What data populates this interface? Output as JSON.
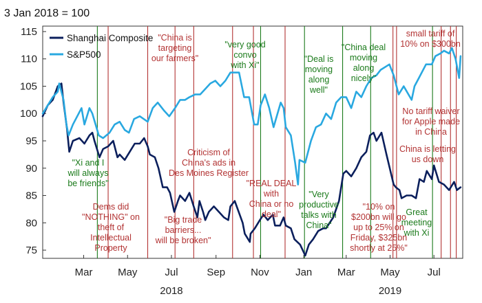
{
  "chart_data": {
    "type": "line",
    "title": "3 Jan 2018 = 100",
    "xlabel": "",
    "ylabel": "",
    "ylim": [
      73.5,
      116
    ],
    "yticks": [
      75,
      80,
      85,
      90,
      95,
      100,
      105,
      110,
      115
    ],
    "x_range": [
      "2018-01-03",
      "2019-08-10"
    ],
    "x_month_ticks": [
      {
        "date": "2018-03-01",
        "label": "Mar"
      },
      {
        "date": "2018-05-01",
        "label": "May"
      },
      {
        "date": "2018-07-01",
        "label": "Jul"
      },
      {
        "date": "2018-09-01",
        "label": "Sep"
      },
      {
        "date": "2018-11-01",
        "label": "Nov"
      },
      {
        "date": "2019-01-01",
        "label": "Jan"
      },
      {
        "date": "2019-03-01",
        "label": "Mar"
      },
      {
        "date": "2019-05-01",
        "label": "May"
      },
      {
        "date": "2019-07-01",
        "label": "Jul"
      }
    ],
    "x_year_labels": [
      {
        "date": "2018-07-01",
        "label": "2018"
      },
      {
        "date": "2019-05-01",
        "label": "2019"
      }
    ],
    "grid": false,
    "legend": "top-left",
    "series": [
      {
        "name": "Shanghai Composite",
        "color": "#0b1f5c",
        "points": [
          [
            "2018-01-03",
            99.5
          ],
          [
            "2018-01-10",
            101.5
          ],
          [
            "2018-01-17",
            102.5
          ],
          [
            "2018-01-24",
            105
          ],
          [
            "2018-01-29",
            105.5
          ],
          [
            "2018-02-01",
            102
          ],
          [
            "2018-02-06",
            97
          ],
          [
            "2018-02-09",
            93
          ],
          [
            "2018-02-14",
            95
          ],
          [
            "2018-02-23",
            95.5
          ],
          [
            "2018-03-02",
            94.5
          ],
          [
            "2018-03-09",
            96
          ],
          [
            "2018-03-13",
            96.5
          ],
          [
            "2018-03-16",
            95
          ],
          [
            "2018-03-23",
            92
          ],
          [
            "2018-03-28",
            93.5
          ],
          [
            "2018-04-04",
            94
          ],
          [
            "2018-04-11",
            95
          ],
          [
            "2018-04-17",
            92
          ],
          [
            "2018-04-20",
            92.5
          ],
          [
            "2018-04-27",
            91.5
          ],
          [
            "2018-05-04",
            93
          ],
          [
            "2018-05-11",
            94.5
          ],
          [
            "2018-05-18",
            94.5
          ],
          [
            "2018-05-24",
            95.5
          ],
          [
            "2018-05-29",
            94
          ],
          [
            "2018-06-01",
            92.5
          ],
          [
            "2018-06-08",
            92
          ],
          [
            "2018-06-13",
            90
          ],
          [
            "2018-06-19",
            86.5
          ],
          [
            "2018-06-25",
            86.5
          ],
          [
            "2018-06-29",
            85.5
          ],
          [
            "2018-07-05",
            82
          ],
          [
            "2018-07-10",
            84
          ],
          [
            "2018-07-13",
            85
          ],
          [
            "2018-07-20",
            84
          ],
          [
            "2018-07-26",
            85.5
          ],
          [
            "2018-08-01",
            83
          ],
          [
            "2018-08-06",
            81
          ],
          [
            "2018-08-09",
            84
          ],
          [
            "2018-08-14",
            82
          ],
          [
            "2018-08-17",
            80.5
          ],
          [
            "2018-08-22",
            82
          ],
          [
            "2018-08-29",
            83
          ],
          [
            "2018-09-05",
            82
          ],
          [
            "2018-09-12",
            81
          ],
          [
            "2018-09-18",
            80.5
          ],
          [
            "2018-09-21",
            83
          ],
          [
            "2018-09-27",
            84
          ],
          [
            "2018-10-08",
            80
          ],
          [
            "2018-10-11",
            78
          ],
          [
            "2018-10-18",
            76.5
          ],
          [
            "2018-10-19",
            78
          ],
          [
            "2018-10-25",
            79
          ],
          [
            "2018-11-01",
            80.5
          ],
          [
            "2018-11-06",
            81.5
          ],
          [
            "2018-11-12",
            80.5
          ],
          [
            "2018-11-19",
            81.5
          ],
          [
            "2018-11-22",
            79.5
          ],
          [
            "2018-11-29",
            79.5
          ],
          [
            "2018-12-04",
            81
          ],
          [
            "2018-12-07",
            79.5
          ],
          [
            "2018-12-14",
            79
          ],
          [
            "2018-12-19",
            77
          ],
          [
            "2018-12-27",
            76
          ],
          [
            "2019-01-03",
            74
          ],
          [
            "2019-01-08",
            76
          ],
          [
            "2019-01-14",
            77
          ],
          [
            "2019-01-21",
            78.5
          ],
          [
            "2019-01-28",
            79
          ],
          [
            "2019-02-01",
            79
          ],
          [
            "2019-02-11",
            81
          ],
          [
            "2019-02-19",
            84
          ],
          [
            "2019-02-25",
            89
          ],
          [
            "2019-03-01",
            89.5
          ],
          [
            "2019-03-08",
            88.5
          ],
          [
            "2019-03-15",
            90
          ],
          [
            "2019-03-22",
            92
          ],
          [
            "2019-03-29",
            93
          ],
          [
            "2019-04-03",
            96
          ],
          [
            "2019-04-08",
            96.5
          ],
          [
            "2019-04-12",
            95
          ],
          [
            "2019-04-19",
            96.5
          ],
          [
            "2019-04-26",
            92.5
          ],
          [
            "2019-05-06",
            87
          ],
          [
            "2019-05-09",
            86.5
          ],
          [
            "2019-05-14",
            86
          ],
          [
            "2019-05-17",
            84.5
          ],
          [
            "2019-05-24",
            85
          ],
          [
            "2019-05-31",
            85
          ],
          [
            "2019-06-06",
            84.5
          ],
          [
            "2019-06-11",
            88
          ],
          [
            "2019-06-17",
            87.5
          ],
          [
            "2019-06-21",
            89.5
          ],
          [
            "2019-06-28",
            88
          ],
          [
            "2019-07-01",
            90.5
          ],
          [
            "2019-07-08",
            87.5
          ],
          [
            "2019-07-15",
            87
          ],
          [
            "2019-07-22",
            86
          ],
          [
            "2019-07-29",
            87.5
          ],
          [
            "2019-08-02",
            86
          ],
          [
            "2019-08-07",
            86.5
          ]
        ]
      },
      {
        "name": "S&P500",
        "color": "#29a8e0",
        "points": [
          [
            "2018-01-03",
            100
          ],
          [
            "2018-01-10",
            101.5
          ],
          [
            "2018-01-17",
            103
          ],
          [
            "2018-01-24",
            104
          ],
          [
            "2018-01-26",
            105.5
          ],
          [
            "2018-02-01",
            102.5
          ],
          [
            "2018-02-05",
            98
          ],
          [
            "2018-02-08",
            96
          ],
          [
            "2018-02-14",
            98
          ],
          [
            "2018-02-26",
            101
          ],
          [
            "2018-03-02",
            98
          ],
          [
            "2018-03-09",
            101
          ],
          [
            "2018-03-13",
            100
          ],
          [
            "2018-03-22",
            96
          ],
          [
            "2018-03-28",
            95.5
          ],
          [
            "2018-04-06",
            96.5
          ],
          [
            "2018-04-13",
            98
          ],
          [
            "2018-04-20",
            98.5
          ],
          [
            "2018-04-27",
            97
          ],
          [
            "2018-05-03",
            96.5
          ],
          [
            "2018-05-10",
            99
          ],
          [
            "2018-05-18",
            99.5
          ],
          [
            "2018-05-29",
            98.5
          ],
          [
            "2018-06-05",
            101
          ],
          [
            "2018-06-12",
            102
          ],
          [
            "2018-06-21",
            100.5
          ],
          [
            "2018-06-28",
            99.5
          ],
          [
            "2018-07-06",
            101
          ],
          [
            "2018-07-13",
            102.5
          ],
          [
            "2018-07-20",
            102.5
          ],
          [
            "2018-07-26",
            103
          ],
          [
            "2018-08-03",
            103.5
          ],
          [
            "2018-08-10",
            103.5
          ],
          [
            "2018-08-17",
            104.5
          ],
          [
            "2018-08-24",
            105.5
          ],
          [
            "2018-08-31",
            106
          ],
          [
            "2018-09-07",
            105
          ],
          [
            "2018-09-14",
            106
          ],
          [
            "2018-09-21",
            107.5
          ],
          [
            "2018-10-03",
            107.5
          ],
          [
            "2018-10-10",
            103
          ],
          [
            "2018-10-17",
            103
          ],
          [
            "2018-10-24",
            98
          ],
          [
            "2018-10-29",
            98
          ],
          [
            "2018-11-02",
            101.5
          ],
          [
            "2018-11-08",
            103.5
          ],
          [
            "2018-11-14",
            101
          ],
          [
            "2018-11-20",
            97.5
          ],
          [
            "2018-11-30",
            102
          ],
          [
            "2018-12-04",
            101
          ],
          [
            "2018-12-07",
            97.5
          ],
          [
            "2018-12-14",
            96
          ],
          [
            "2018-12-20",
            91
          ],
          [
            "2018-12-24",
            87
          ],
          [
            "2018-12-26",
            91.5
          ],
          [
            "2019-01-03",
            91
          ],
          [
            "2019-01-11",
            95
          ],
          [
            "2019-01-18",
            97.5
          ],
          [
            "2019-01-25",
            98
          ],
          [
            "2019-02-01",
            100
          ],
          [
            "2019-02-08",
            99
          ],
          [
            "2019-02-15",
            102
          ],
          [
            "2019-02-22",
            103
          ],
          [
            "2019-03-01",
            103
          ],
          [
            "2019-03-08",
            101
          ],
          [
            "2019-03-15",
            104
          ],
          [
            "2019-03-22",
            103
          ],
          [
            "2019-03-29",
            105
          ],
          [
            "2019-04-05",
            106.5
          ],
          [
            "2019-04-12",
            107
          ],
          [
            "2019-04-18",
            108
          ],
          [
            "2019-04-30",
            109
          ],
          [
            "2019-05-06",
            107
          ],
          [
            "2019-05-13",
            103.5
          ],
          [
            "2019-05-20",
            105
          ],
          [
            "2019-05-31",
            102.5
          ],
          [
            "2019-06-04",
            105
          ],
          [
            "2019-06-10",
            106.5
          ],
          [
            "2019-06-20",
            109
          ],
          [
            "2019-06-28",
            109
          ],
          [
            "2019-07-03",
            110.5
          ],
          [
            "2019-07-10",
            111
          ],
          [
            "2019-07-15",
            111.5
          ],
          [
            "2019-07-22",
            111
          ],
          [
            "2019-07-26",
            112
          ],
          [
            "2019-07-31",
            110
          ],
          [
            "2019-08-05",
            106.5
          ],
          [
            "2019-08-07",
            110.5
          ]
        ]
      }
    ],
    "event_lines": [
      {
        "date": "2018-03-20",
        "color": "#1a7a1a"
      },
      {
        "date": "2018-04-04",
        "color": "#b23232"
      },
      {
        "date": "2018-05-29",
        "color": "#b23232"
      },
      {
        "date": "2018-07-06",
        "color": "#b23232"
      },
      {
        "date": "2018-08-01",
        "color": "#b23232"
      },
      {
        "date": "2018-09-24",
        "color": "#b23232"
      },
      {
        "date": "2018-10-23",
        "color": "#b23232"
      },
      {
        "date": "2018-11-02",
        "color": "#1a7a1a"
      },
      {
        "date": "2018-12-06",
        "color": "#b23232"
      },
      {
        "date": "2019-01-02",
        "color": "#1a7a1a"
      },
      {
        "date": "2019-02-24",
        "color": "#1a7a1a"
      },
      {
        "date": "2019-04-04",
        "color": "#1a7a1a"
      },
      {
        "date": "2019-05-05",
        "color": "#b23232"
      },
      {
        "date": "2019-05-10",
        "color": "#b23232"
      },
      {
        "date": "2019-06-29",
        "color": "#1a7a1a"
      },
      {
        "date": "2019-07-11",
        "color": "#b23232"
      },
      {
        "date": "2019-07-24",
        "color": "#b23232"
      },
      {
        "date": "2019-08-01",
        "color": "#b23232"
      }
    ],
    "annotations": [
      {
        "color": "#1a7a1a",
        "lines": [
          "\"Xi and I",
          "will always",
          "be friends\""
        ]
      },
      {
        "color": "#b23232",
        "lines": [
          "Dems did",
          "\"NOTHING\" on",
          "theft of",
          "Intellectual",
          "Property"
        ]
      },
      {
        "color": "#b23232",
        "lines": [
          "\"China is",
          "targeting",
          "our farmers\""
        ]
      },
      {
        "color": "#b23232",
        "lines": [
          "\"Big trade",
          "barriers...",
          "will be broken\""
        ]
      },
      {
        "color": "#b23232",
        "lines": [
          "Criticism of",
          "China's ads in",
          "Des Moines Register"
        ]
      },
      {
        "color": "#1a7a1a",
        "lines": [
          "\"very good",
          "convo",
          "with Xi\""
        ]
      },
      {
        "color": "#b23232",
        "lines": [
          "\"REAL DEAL",
          "with",
          "China or no",
          "deal\""
        ]
      },
      {
        "color": "#1a7a1a",
        "lines": [
          "\"Deal is",
          "moving",
          "along",
          "well\""
        ]
      },
      {
        "color": "#1a7a1a",
        "lines": [
          "\"Very",
          "productive",
          "talks with",
          "China\""
        ]
      },
      {
        "color": "#1a7a1a",
        "lines": [
          "\"China deal",
          "moving",
          "along",
          "nicely\""
        ]
      },
      {
        "color": "#b23232",
        "lines": [
          "\"10% on",
          "$200bn will go",
          "up to 25% on",
          "Friday, $325bn",
          "shortly at 25%\""
        ]
      },
      {
        "color": "#b23232",
        "lines": [
          "small tariff of",
          "10% on $300bn"
        ]
      },
      {
        "color": "#b23232",
        "lines": [
          "No tariff waiver",
          "for Apple made",
          "in China"
        ]
      },
      {
        "color": "#b23232",
        "lines": [
          "China is letting",
          "us down"
        ]
      },
      {
        "color": "#1a7a1a",
        "lines": [
          "Great",
          "meeting",
          "with Xi"
        ]
      }
    ]
  }
}
